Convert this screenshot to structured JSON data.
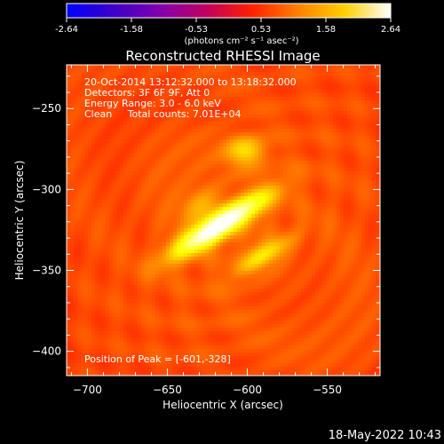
{
  "chart_data": {
    "type": "heatmap",
    "title": "Reconstructed RHESSI Image",
    "xlabel": "Heliocentric X (arcsec)",
    "ylabel": "Heliocentric Y (arcsec)",
    "xlim": [
      -713,
      -517
    ],
    "ylim": [
      -415,
      -223
    ],
    "xticks": [
      -700,
      -650,
      -600,
      -550
    ],
    "yticks": [
      -250,
      -300,
      -350,
      -400
    ],
    "annotations": [
      "20-Oct-2014 13:12:32.000 to 13:18:32.000",
      "Detectors: 3F 6F 9F, Att 0",
      "Energy Range: 3.0 - 6.0 keV",
      "Clean     Total counts: 7.01E+04"
    ],
    "peak_label": "Position of Peak = [-601,-328]",
    "peak": [
      -601,
      -328
    ],
    "colorbar": {
      "ticks": [
        "-2.64",
        "-1.58",
        "-0.53",
        "0.53",
        "1.58",
        "2.64"
      ],
      "range": [
        -2.64,
        2.64
      ],
      "unit_label": "(photons cm⁻² s⁻¹ asec⁻²)",
      "colors": [
        "#0000ff",
        "#3b00c8",
        "#8000b0",
        "#c00060",
        "#ff2000",
        "#ff8000",
        "#ffd000",
        "#ffffff"
      ]
    },
    "sources": [
      {
        "x": -617,
        "y": -322,
        "sx": 22,
        "sy": 5,
        "angle_deg": -32,
        "amp": 2.64
      },
      {
        "x": -628,
        "y": -311,
        "sx": 9,
        "sy": 7,
        "angle_deg": -32,
        "amp": 0.5
      },
      {
        "x": -590,
        "y": -341,
        "sx": 14,
        "sy": 4,
        "angle_deg": -32,
        "amp": 0.8
      },
      {
        "x": -601,
        "y": -276,
        "sx": 8,
        "sy": 6,
        "angle_deg": 0,
        "amp": 0.8
      }
    ],
    "background_level": 0.55
  },
  "timestamp": "18-May-2022 10:43"
}
